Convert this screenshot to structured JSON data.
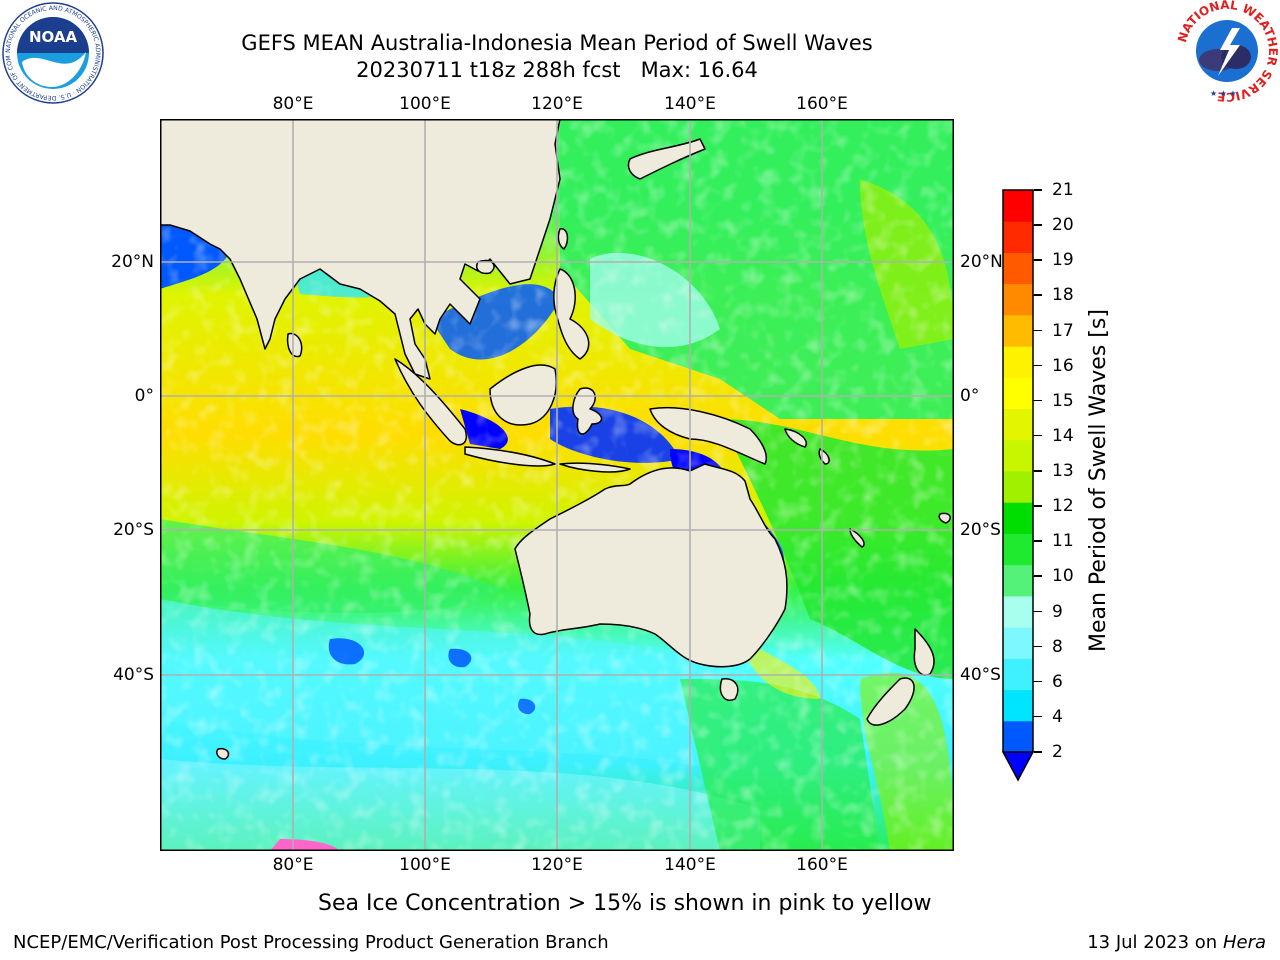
{
  "header": {
    "title_line1": "GEFS MEAN Australia-Indonesia Mean Period of Swell Waves",
    "title_line2": "20230711 t18z 288h fcst   Max: 16.64"
  },
  "logos": {
    "noaa_text": "NOAA",
    "noaa_ring_text": "NATIONAL OCEANIC AND ATMOSPHERIC ADMINISTRATION · U.S. DEPARTMENT OF COMMERCE",
    "nws_ring_text": "NATIONAL WEATHER SERVICE"
  },
  "map": {
    "lon_labels": [
      "80°E",
      "100°E",
      "120°E",
      "140°E",
      "160°E"
    ],
    "lat_labels": [
      "20°N",
      "0°",
      "20°S",
      "40°S"
    ],
    "gridline_color": "#b0b0b0",
    "land_color": "#efebdc"
  },
  "colorbar": {
    "title": "Mean Period of Swell Waves [s]",
    "tick_labels": [
      "21",
      "20",
      "19",
      "18",
      "17",
      "16",
      "15",
      "14",
      "13",
      "12",
      "11",
      "10",
      "9",
      "8",
      "6",
      "4",
      "2"
    ],
    "colors_bottom_to_top": [
      "#0058ff",
      "#00e5ff",
      "#3ff0ff",
      "#7ef8ff",
      "#a8ffee",
      "#55f27a",
      "#1fea30",
      "#00dd00",
      "#a0f000",
      "#c8f500",
      "#e4f500",
      "#ffff00",
      "#fff200",
      "#ffbb00",
      "#ff8a00",
      "#ff5a00",
      "#ff2a00",
      "#ff0000"
    ],
    "under_color": "#0000ff"
  },
  "caption": "Sea Ice Concentration > 15% is shown in pink to yellow",
  "footer": {
    "left": "NCEP/EMC/Verification Post Processing Product Generation Branch",
    "right_prefix": "13 Jul 2023 on ",
    "right_host": "Hera"
  }
}
